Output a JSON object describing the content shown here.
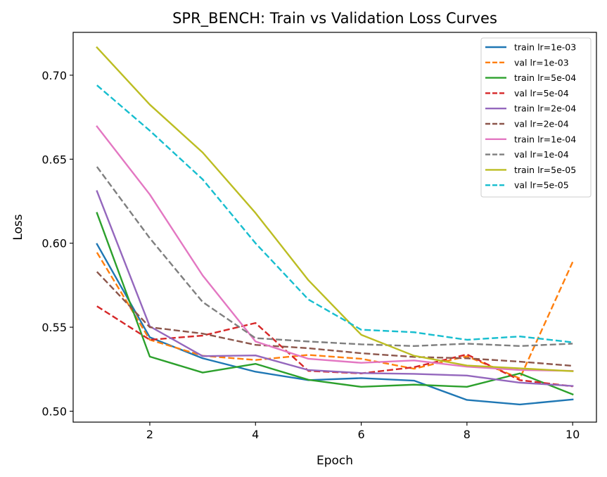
{
  "chart_data": {
    "type": "line",
    "title": "SPR_BENCH: Train vs Validation Loss Curves",
    "xlabel": "Epoch",
    "ylabel": "Loss",
    "xlim": [
      0.55,
      10.45
    ],
    "ylim": [
      0.4935,
      0.7255
    ],
    "xticks": [
      2,
      4,
      6,
      8,
      10
    ],
    "yticks": [
      0.5,
      0.55,
      0.6,
      0.65,
      0.7
    ],
    "ytick_labels": [
      "0.50",
      "0.55",
      "0.60",
      "0.65",
      "0.70"
    ],
    "grid": false,
    "legend_position": "top-right",
    "x": [
      1,
      2,
      3,
      4,
      5,
      6,
      7,
      8,
      9,
      10
    ],
    "series": [
      {
        "name": "train lr=1e-03",
        "color": "#1f77b4",
        "dash": "solid",
        "values": [
          0.5995,
          0.544,
          0.5315,
          0.5235,
          0.5185,
          0.5197,
          0.5182,
          0.5067,
          0.504,
          0.507
        ]
      },
      {
        "name": "val lr=1e-03",
        "color": "#ff7f0e",
        "dash": "dashed",
        "values": [
          0.5945,
          0.5425,
          0.533,
          0.5305,
          0.5335,
          0.5312,
          0.5253,
          0.5327,
          0.5195,
          0.5888
        ]
      },
      {
        "name": "train lr=5e-04",
        "color": "#2ca02c",
        "dash": "solid",
        "values": [
          0.618,
          0.5325,
          0.523,
          0.5282,
          0.5187,
          0.5145,
          0.5158,
          0.5145,
          0.5225,
          0.51
        ]
      },
      {
        "name": "val lr=5e-04",
        "color": "#d62728",
        "dash": "dashed",
        "values": [
          0.5625,
          0.5425,
          0.545,
          0.5525,
          0.524,
          0.5225,
          0.5262,
          0.5338,
          0.5185,
          0.5148
        ]
      },
      {
        "name": "train lr=2e-04",
        "color": "#9467bd",
        "dash": "solid",
        "values": [
          0.631,
          0.5505,
          0.5328,
          0.5332,
          0.5245,
          0.5227,
          0.5222,
          0.5212,
          0.517,
          0.515
        ]
      },
      {
        "name": "val lr=2e-04",
        "color": "#8c564b",
        "dash": "dashed",
        "values": [
          0.583,
          0.55,
          0.5462,
          0.5395,
          0.5375,
          0.5345,
          0.5323,
          0.5315,
          0.5295,
          0.527
        ]
      },
      {
        "name": "train lr=1e-04",
        "color": "#e377c2",
        "dash": "solid",
        "values": [
          0.6695,
          0.629,
          0.5808,
          0.5415,
          0.5312,
          0.5288,
          0.5302,
          0.5265,
          0.5245,
          0.524
        ]
      },
      {
        "name": "val lr=1e-04",
        "color": "#7f7f7f",
        "dash": "dashed",
        "values": [
          0.6455,
          0.603,
          0.565,
          0.5435,
          0.5415,
          0.5398,
          0.5388,
          0.5402,
          0.5388,
          0.5402
        ]
      },
      {
        "name": "train lr=5e-05",
        "color": "#bcbd22",
        "dash": "solid",
        "values": [
          0.7165,
          0.6825,
          0.654,
          0.618,
          0.578,
          0.5455,
          0.533,
          0.5272,
          0.5255,
          0.5238
        ]
      },
      {
        "name": "val lr=5e-05",
        "color": "#17becf",
        "dash": "dashed",
        "values": [
          0.694,
          0.667,
          0.638,
          0.6,
          0.5665,
          0.5485,
          0.547,
          0.5425,
          0.5445,
          0.541
        ]
      }
    ]
  }
}
